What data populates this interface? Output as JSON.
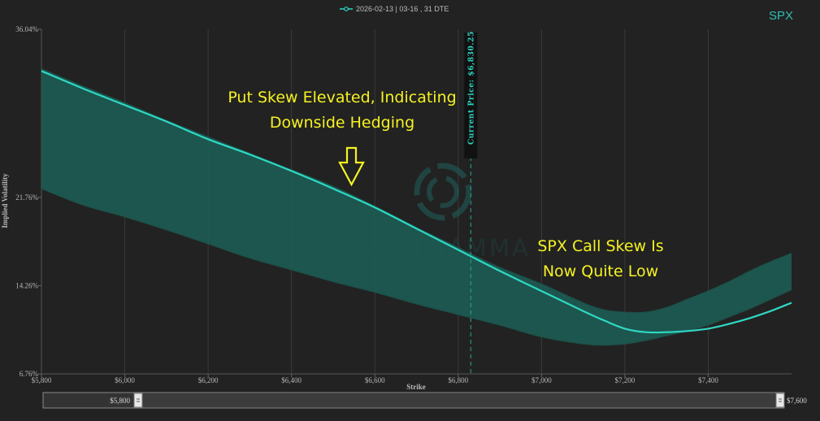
{
  "chart_data": {
    "type": "area",
    "title": "",
    "ticker": "SPX",
    "legend": [
      {
        "name": "2026-02-13 | 03-16 , 31 DTE",
        "color": "#2ed8c4"
      }
    ],
    "xlabel": "Strike",
    "ylabel": "Implied Volatility",
    "xlim": [
      5800,
      7600
    ],
    "ylim": [
      6.76,
      36.04
    ],
    "x_ticks": [
      5800,
      6000,
      6200,
      6400,
      6600,
      6800,
      7000,
      7200,
      7400
    ],
    "x_tick_labels": [
      "$5,800",
      "$6,000",
      "$6,200",
      "$6,400",
      "$6,600",
      "$6,800",
      "$7,000",
      "$7,200",
      "$7,400"
    ],
    "y_ticks": [
      6.76,
      14.26,
      21.76,
      36.04
    ],
    "y_tick_labels": [
      "6.76%",
      "14.26%",
      "21.76%",
      "36.04%"
    ],
    "grid": "vertical",
    "x": [
      5800,
      5900,
      6000,
      6100,
      6200,
      6300,
      6400,
      6500,
      6600,
      6700,
      6800,
      6900,
      7000,
      7100,
      7150,
      7200,
      7250,
      7300,
      7350,
      7400,
      7450,
      7500,
      7550,
      7600
    ],
    "series": [
      {
        "name": "",
        "color": "#2ed8c4",
        "values": [
          32.5,
          31.0,
          29.6,
          28.2,
          26.7,
          25.4,
          24.0,
          22.5,
          20.9,
          19.1,
          17.3,
          15.5,
          13.8,
          12.1,
          11.3,
          10.6,
          10.3,
          10.3,
          10.4,
          10.6,
          11.0,
          11.5,
          12.1,
          12.8
        ]
      },
      {
        "name": "",
        "color": "#1d5a51",
        "values": [
          32.7,
          31.2,
          29.8,
          28.3,
          26.9,
          25.5,
          24.1,
          22.7,
          21.0,
          19.2,
          17.5,
          15.8,
          14.4,
          12.8,
          12.2,
          12.0,
          12.0,
          12.4,
          13.1,
          13.8,
          14.6,
          15.5,
          16.3,
          17.0
        ]
      },
      {
        "name": "",
        "color": "#1d5a51",
        "values": [
          22.5,
          21.1,
          20.1,
          19.0,
          17.8,
          16.6,
          15.6,
          14.6,
          13.7,
          12.7,
          11.8,
          10.9,
          9.9,
          9.3,
          9.2,
          9.3,
          9.6,
          10.0,
          10.4,
          10.9,
          11.6,
          12.3,
          13.1,
          13.9
        ]
      }
    ],
    "current_price": {
      "x": 6830.25,
      "label": "Current Price: $6,830.25"
    },
    "annotations": [
      {
        "text": [
          "Put Skew Elevated, Indicating",
          "Downside Hedging"
        ],
        "color": "#f5f222"
      },
      {
        "text": [
          "SPX Call Skew Is",
          "Now Quite Low"
        ],
        "color": "#f5f222"
      }
    ],
    "watermark": "SPOTGAMMA",
    "navigator": {
      "left_label": "$5,800",
      "right_label": "$7,600"
    }
  }
}
